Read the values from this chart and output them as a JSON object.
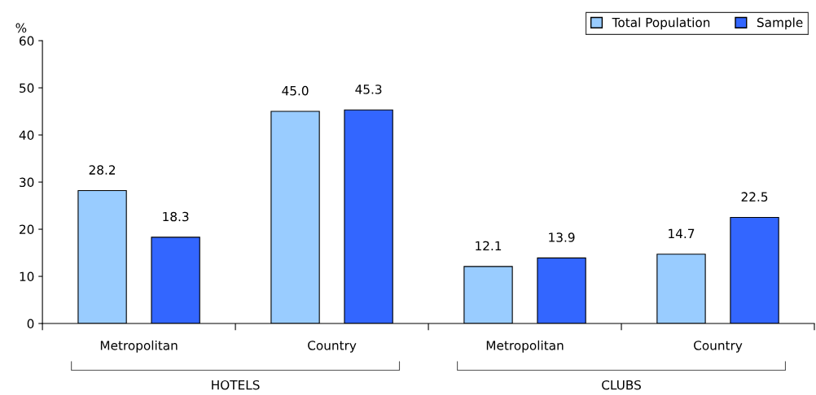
{
  "chart_data": {
    "type": "bar",
    "ylabel": "%",
    "categories": [
      "Metropolitan",
      "Country",
      "Metropolitan",
      "Country"
    ],
    "series": [
      {
        "name": "Total Population",
        "color": "#99ccff",
        "values": [
          28.2,
          45.0,
          12.1,
          14.7
        ]
      },
      {
        "name": "Sample",
        "color": "#3366ff",
        "values": [
          18.3,
          45.3,
          13.9,
          22.5
        ]
      }
    ],
    "ylim": [
      0,
      60
    ],
    "yticks": [
      0,
      10,
      20,
      30,
      40,
      50,
      60
    ],
    "value_labels": [
      [
        "28.2",
        "45.0",
        "12.1",
        "14.7"
      ],
      [
        "18.3",
        "45.3",
        "13.9",
        "22.5"
      ]
    ],
    "annotations": [
      "HOTELS",
      "CLUBS"
    ],
    "legend": "top right",
    "grid": false
  }
}
